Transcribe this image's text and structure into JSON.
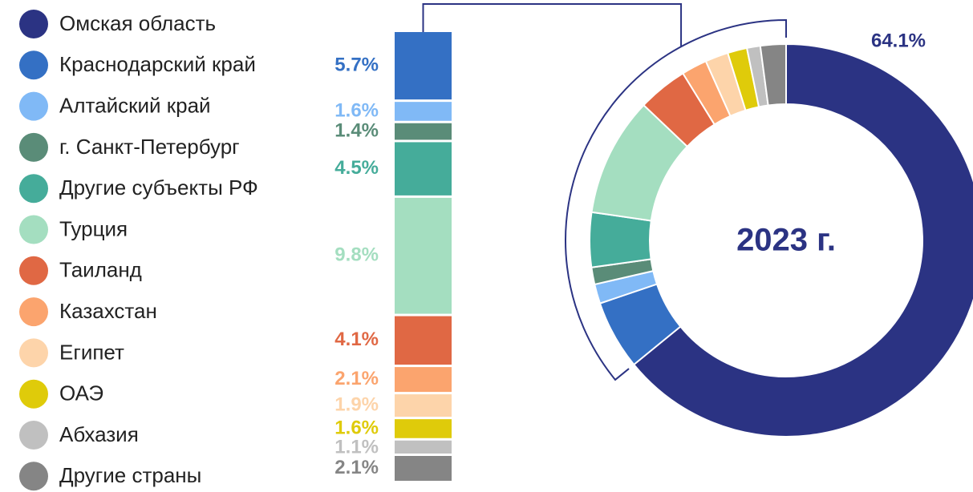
{
  "chart_data": {
    "type": "bar-of-pie",
    "title": "2023 г.",
    "categories": [
      "Омская область",
      "Краснодарский край",
      "Алтайский край",
      "г. Санкт-Петербург",
      "Другие субъекты РФ",
      "Турция",
      "Таиланд",
      "Казахстан",
      "Египет",
      "ОАЭ",
      "Абхазия",
      "Другие страны"
    ],
    "values": [
      64.1,
      5.7,
      1.6,
      1.4,
      4.5,
      9.8,
      4.1,
      2.1,
      1.9,
      1.6,
      1.1,
      2.1
    ],
    "value_labels": [
      "64.1%",
      "5.7%",
      "1.6%",
      "1.4%",
      "4.5%",
      "9.8%",
      "4.1%",
      "2.1%",
      "1.9%",
      "1.6%",
      "1.1%",
      "2.1%"
    ],
    "colors": [
      "#2b3383",
      "#3470c4",
      "#80b9f6",
      "#5a8c78",
      "#45ac9a",
      "#a4dec0",
      "#e06844",
      "#fba46e",
      "#fdd4aa",
      "#dfcb0a",
      "#c0c0c0",
      "#858585"
    ]
  }
}
